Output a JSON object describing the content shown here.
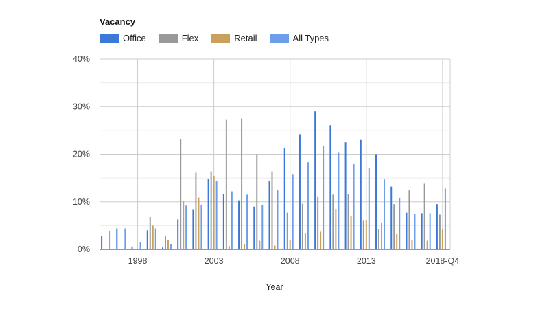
{
  "chart_data": {
    "type": "bar",
    "legend_title": "Vacancy",
    "xlabel": "Year",
    "ylabel": "",
    "ylim": [
      0,
      40
    ],
    "y_ticks": [
      "0%",
      "10%",
      "20%",
      "30%",
      "40%"
    ],
    "y_tick_values": [
      0,
      10,
      20,
      30,
      40
    ],
    "x_tick_labels": [
      {
        "label": "1998",
        "index": 2
      },
      {
        "label": "2003",
        "index": 7
      },
      {
        "label": "2008",
        "index": 12
      },
      {
        "label": "2013",
        "index": 17
      },
      {
        "label": "2018-Q4",
        "index": 22
      }
    ],
    "category_count": 23,
    "series": [
      {
        "name": "Office",
        "color": "#3c78d8",
        "values": [
          2.9,
          4.4,
          0.6,
          4.0,
          0.4,
          6.3,
          8.3,
          14.8,
          11.6,
          10.3,
          9.0,
          14.4,
          21.3,
          24.2,
          29.0,
          26.1,
          22.5,
          23.0,
          20.0,
          13.2,
          7.7,
          7.6,
          9.5
        ]
      },
      {
        "name": "Flex",
        "color": "#999999",
        "values": [
          0,
          0,
          0,
          6.8,
          2.9,
          23.2,
          16.1,
          16.4,
          27.2,
          27.5,
          20.0,
          16.4,
          7.7,
          9.6,
          11.0,
          11.5,
          11.6,
          6.0,
          4.3,
          9.5,
          12.4,
          13.8,
          7.3
        ]
      },
      {
        "name": "Retail",
        "color": "#c9a15c",
        "values": [
          0,
          0,
          0,
          5.0,
          2.0,
          10.2,
          10.9,
          15.4,
          0.7,
          1.0,
          1.8,
          0.8,
          1.9,
          3.3,
          3.7,
          8.5,
          7.0,
          6.2,
          5.5,
          3.2,
          1.9,
          1.8,
          4.3
        ]
      },
      {
        "name": "All Types",
        "color": "#6d9eeb",
        "values": [
          3.8,
          4.4,
          1.5,
          4.4,
          1.0,
          9.2,
          9.4,
          14.4,
          12.2,
          11.5,
          9.4,
          12.4,
          15.7,
          18.3,
          21.8,
          20.3,
          17.9,
          17.1,
          14.7,
          10.7,
          7.4,
          7.6,
          12.8
        ]
      }
    ]
  }
}
